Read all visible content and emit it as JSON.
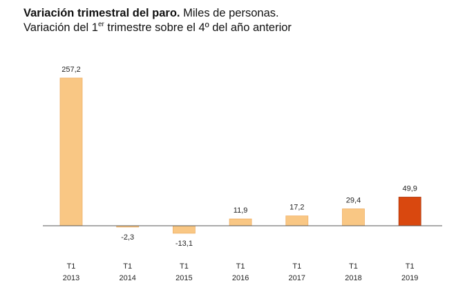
{
  "title": {
    "bold": "Variación trimestral del paro.",
    "normal": " Miles de personas.",
    "sub_before": "Variación del 1",
    "sub_sup": "er",
    "sub_after": " trimestre sobre el 4º del año anterior"
  },
  "colors": {
    "bar": "#f9c784",
    "bar_highlight": "#d9480f",
    "axis": "#555555"
  },
  "chart_data": {
    "type": "bar",
    "title": "Variación trimestral del paro. Miles de personas. Variación del 1er trimestre sobre el 4º del año anterior",
    "categories": [
      [
        "T1",
        "2013"
      ],
      [
        "T1",
        "2014"
      ],
      [
        "T1",
        "2015"
      ],
      [
        "T1",
        "2016"
      ],
      [
        "T1",
        "2017"
      ],
      [
        "T1",
        "2018"
      ],
      [
        "T1",
        "2019"
      ]
    ],
    "values": [
      257.2,
      -2.3,
      -13.1,
      11.9,
      17.2,
      29.4,
      49.9
    ],
    "value_labels": [
      "257,2",
      "-2,3",
      "-13,1",
      "11,9",
      "17,2",
      "29,4",
      "49,9"
    ],
    "highlight_index": 6,
    "xlabel": "",
    "ylabel": "",
    "ylim": [
      -13.1,
      257.2
    ],
    "grid": false,
    "legend": "none"
  }
}
